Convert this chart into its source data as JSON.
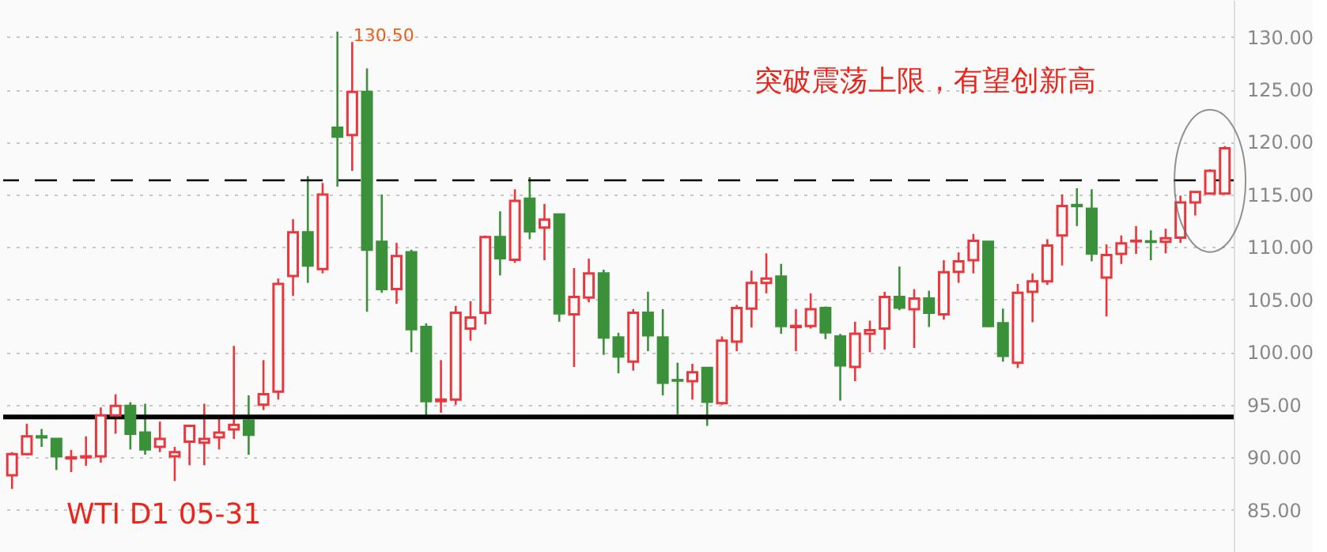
{
  "chart_data": {
    "type": "candlestick",
    "categories": [
      null,
      null,
      null,
      null,
      null,
      null,
      null,
      null,
      null,
      null,
      null,
      null,
      null,
      null,
      null,
      null,
      null,
      null,
      null,
      null,
      null,
      null,
      null,
      null,
      null,
      null,
      null,
      null,
      null,
      null,
      null,
      null,
      null,
      null,
      null,
      null,
      null,
      null,
      null,
      null,
      null,
      null,
      null,
      null,
      null,
      null,
      null,
      null,
      null,
      null,
      null,
      null,
      null,
      null,
      null,
      null,
      null,
      null,
      null,
      null,
      null,
      null,
      null,
      null,
      null,
      null,
      null,
      null,
      null,
      null,
      null,
      null,
      null,
      null,
      null,
      null,
      null,
      null,
      null,
      null,
      null,
      null,
      null
    ],
    "ohlc": [
      [
        88.3,
        90.5,
        87,
        90.3
      ],
      [
        90.3,
        93.2,
        90.2,
        92
      ],
      [
        92,
        92.7,
        91,
        91.9
      ],
      [
        91.75,
        91.8,
        88.8,
        90.1
      ],
      [
        89.9,
        90.7,
        88.6,
        90
      ],
      [
        90,
        92,
        89.2,
        90.1
      ],
      [
        90.1,
        94.75,
        89.5,
        94
      ],
      [
        94,
        96,
        92.25,
        94.9
      ],
      [
        94.9,
        95.25,
        90.75,
        92.25
      ],
      [
        92.35,
        95.1,
        90.25,
        90.75
      ],
      [
        91,
        93.4,
        90.5,
        91.75
      ],
      [
        90.1,
        91,
        87.75,
        90.5
      ],
      [
        91.5,
        93.1,
        89.25,
        93
      ],
      [
        91.4,
        95.1,
        89.25,
        91.75
      ],
      [
        91.9,
        94,
        90.75,
        92.35
      ],
      [
        92.65,
        100.6,
        91.75,
        93.1
      ],
      [
        93.5,
        95.9,
        90.25,
        92.15
      ],
      [
        95,
        99.25,
        94.5,
        96
      ],
      [
        96.25,
        107,
        95.5,
        106.5
      ],
      [
        107.25,
        112.65,
        105.35,
        111.4
      ],
      [
        111.4,
        116.75,
        106.6,
        108.25
      ],
      [
        107.9,
        116.1,
        107.5,
        115
      ],
      [
        121.35,
        130.5,
        115.75,
        120.5
      ],
      [
        120.65,
        129.5,
        117.25,
        124.75
      ],
      [
        124.75,
        127,
        103.85,
        109.75
      ],
      [
        110.5,
        115,
        105.65,
        106
      ],
      [
        106,
        110.4,
        104.6,
        109.15
      ],
      [
        109.5,
        109.75,
        100,
        102.2
      ],
      [
        102.4,
        102.75,
        94,
        95.35
      ],
      [
        95.35,
        99.25,
        94.25,
        95.5
      ],
      [
        95.5,
        104.4,
        95,
        103.75
      ],
      [
        102.25,
        104.85,
        101.1,
        103.3
      ],
      [
        103.75,
        111.1,
        102.65,
        110.95
      ],
      [
        110.95,
        113.4,
        107.3,
        108.95
      ],
      [
        108.8,
        115.5,
        108.5,
        114.4
      ],
      [
        114.6,
        116.65,
        110.75,
        111.5
      ],
      [
        111.85,
        114.1,
        108.75,
        112.6
      ],
      [
        113.1,
        113.1,
        102.9,
        103.7
      ],
      [
        103.6,
        108,
        98.6,
        105.25
      ],
      [
        105.2,
        108.9,
        104.75,
        107.5
      ],
      [
        107.5,
        107.85,
        99.75,
        101.4
      ],
      [
        101.4,
        101.85,
        98,
        99.6
      ],
      [
        99.1,
        104.1,
        98.25,
        103.75
      ],
      [
        103.75,
        105.75,
        100.1,
        101.6
      ],
      [
        101.4,
        104.1,
        95.9,
        97.1
      ],
      [
        97.35,
        99,
        94.1,
        97.3
      ],
      [
        97.25,
        98.9,
        95.5,
        98.1
      ],
      [
        98.5,
        98.6,
        93,
        95.3
      ],
      [
        95.15,
        101.5,
        95,
        101.1
      ],
      [
        101,
        104.5,
        100.1,
        104.2
      ],
      [
        104.15,
        107.75,
        102.35,
        106.6
      ],
      [
        106.6,
        109.4,
        105.6,
        107
      ],
      [
        107.2,
        108.4,
        101.75,
        102.5
      ],
      [
        102.4,
        104.1,
        100.1,
        102.5
      ],
      [
        102.5,
        105.6,
        102.25,
        104.1
      ],
      [
        104.2,
        104.35,
        101.25,
        101.9
      ],
      [
        101.5,
        101.75,
        95.4,
        98.75
      ],
      [
        98.6,
        102.9,
        97.25,
        101.75
      ],
      [
        101.75,
        103,
        100,
        102.1
      ],
      [
        102.25,
        105.75,
        100.25,
        105.25
      ],
      [
        105.25,
        108.15,
        104,
        104.25
      ],
      [
        104.1,
        106,
        100.4,
        105.1
      ],
      [
        105.1,
        105.85,
        102.4,
        103.75
      ],
      [
        103.6,
        108.75,
        103.1,
        107.6
      ],
      [
        107.65,
        109.5,
        106.6,
        108.65
      ],
      [
        108.75,
        111.25,
        107.5,
        110.6
      ],
      [
        110.5,
        110.5,
        102.4,
        102.5
      ],
      [
        102.75,
        104.15,
        99.1,
        99.65
      ],
      [
        99,
        106.5,
        98.5,
        105.65
      ],
      [
        105.75,
        107.5,
        102.85,
        106.75
      ],
      [
        106.75,
        110.75,
        106.4,
        110.15
      ],
      [
        111.1,
        115,
        108.25,
        113.9
      ],
      [
        114,
        115.6,
        112,
        113.9
      ],
      [
        113.65,
        115.5,
        108.65,
        109.4
      ],
      [
        107.1,
        110.25,
        103.4,
        109.25
      ],
      [
        109.35,
        111.1,
        108.4,
        110.35
      ],
      [
        110.55,
        112,
        109.35,
        110.6
      ],
      [
        110.55,
        111.6,
        108.75,
        110.5
      ],
      [
        110.5,
        111.75,
        109.4,
        110.85
      ],
      [
        110.9,
        114.9,
        110.4,
        114.25
      ],
      [
        114.25,
        115.25,
        113,
        115.25
      ],
      [
        115.1,
        117.4,
        115.1,
        117.25
      ],
      [
        115.1,
        119.6,
        115.1,
        119.4
      ]
    ],
    "colors": [
      "#e8383d",
      "#e8383d",
      "#3a913a",
      "#3a913a",
      "#e8383d",
      "#e8383d",
      "#e8383d",
      "#e8383d",
      "#3a913a",
      "#3a913a",
      "#e8383d",
      "#e8383d",
      "#e8383d",
      "#e8383d",
      "#e8383d",
      "#e8383d",
      "#3a913a",
      "#e8383d",
      "#e8383d",
      "#e8383d",
      "#3a913a",
      "#e8383d",
      "#3a913a",
      "#e8383d",
      "#3a913a",
      "#3a913a",
      "#e8383d",
      "#3a913a",
      "#3a913a",
      "#e8383d",
      "#e8383d",
      "#e8383d",
      "#e8383d",
      "#3a913a",
      "#e8383d",
      "#3a913a",
      "#e8383d",
      "#3a913a",
      "#e8383d",
      "#e8383d",
      "#3a913a",
      "#3a913a",
      "#e8383d",
      "#3a913a",
      "#3a913a",
      "#3a913a",
      "#e8383d",
      "#3a913a",
      "#e8383d",
      "#e8383d",
      "#e8383d",
      "#e8383d",
      "#3a913a",
      "#e8383d",
      "#e8383d",
      "#3a913a",
      "#3a913a",
      "#e8383d",
      "#e8383d",
      "#e8383d",
      "#3a913a",
      "#e8383d",
      "#3a913a",
      "#e8383d",
      "#e8383d",
      "#e8383d",
      "#3a913a",
      "#3a913a",
      "#e8383d",
      "#e8383d",
      "#e8383d",
      "#e8383d",
      "#3a913a",
      "#3a913a",
      "#e8383d",
      "#e8383d",
      "#e8383d",
      "#3a913a",
      "#e8383d",
      "#e8383d",
      "#e8383d",
      "#e8383d",
      "#e8383d"
    ],
    "ylim": [
      81,
      133.5
    ],
    "yticks": [
      {
        "value": 85,
        "label": "85.00"
      },
      {
        "value": 90,
        "label": "90.00"
      },
      {
        "value": 95,
        "label": "95.00"
      },
      {
        "value": 100,
        "label": "100.00"
      },
      {
        "value": 105,
        "label": "105.00"
      },
      {
        "value": 110,
        "label": "110.00"
      },
      {
        "value": 115,
        "label": "115.00"
      },
      {
        "value": 120,
        "label": "120.00"
      },
      {
        "value": 125,
        "label": "125.00"
      },
      {
        "value": 130,
        "label": "130.00"
      }
    ],
    "grid": "y",
    "ref_lines": [
      {
        "axis": "y",
        "value": 116.35,
        "color": "#000000",
        "line_style": "dashed"
      },
      {
        "axis": "y",
        "value": 93.85,
        "color": "#000000",
        "line_style": "solid"
      }
    ],
    "annotations": [
      "130.50",
      "突破震荡上限，有望创新高",
      "WTI D1 05-31"
    ]
  }
}
